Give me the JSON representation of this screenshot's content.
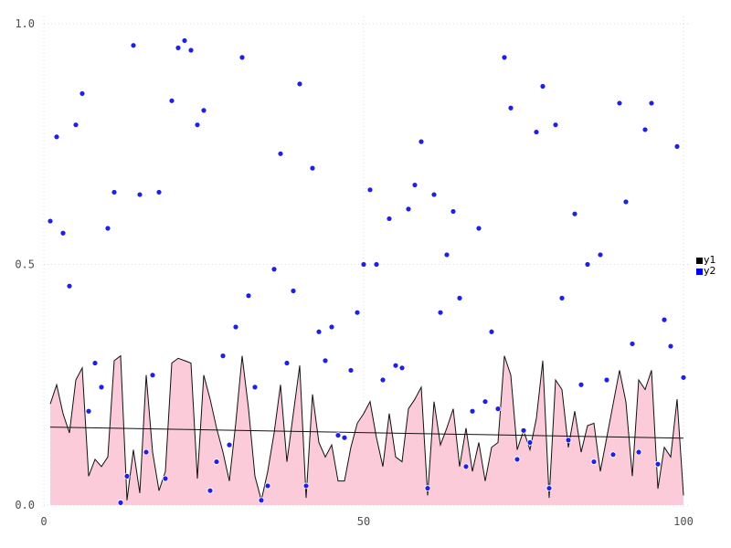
{
  "chart_data": {
    "type": "area+scatter",
    "title": "",
    "xlabel": "",
    "ylabel": "",
    "xlim": [
      0,
      100
    ],
    "ylim": [
      0,
      1
    ],
    "xticks": {
      "values": [
        0,
        50,
        100
      ],
      "labels": [
        "0",
        "50",
        "100"
      ]
    },
    "yticks": {
      "values": [
        0,
        0.5,
        1
      ],
      "labels": [
        "0.0",
        "0.5",
        "1.0"
      ]
    },
    "grid": {
      "visible": true,
      "style": "dotted",
      "color": "#d9d9e3"
    },
    "x_start": 1,
    "x_step": 1,
    "series": [
      {
        "name": "y1",
        "type": "area",
        "fill_color": "#fbcbd9",
        "line_color": "#111111",
        "values": [
          0.21,
          0.25,
          0.19,
          0.15,
          0.26,
          0.285,
          0.06,
          0.095,
          0.08,
          0.1,
          0.3,
          0.31,
          0.01,
          0.115,
          0.025,
          0.27,
          0.11,
          0.03,
          0.07,
          0.295,
          0.305,
          0.3,
          0.295,
          0.055,
          0.27,
          0.22,
          0.16,
          0.11,
          0.05,
          0.17,
          0.31,
          0.2,
          0.06,
          0.01,
          0.07,
          0.15,
          0.25,
          0.09,
          0.19,
          0.29,
          0.015,
          0.23,
          0.13,
          0.1,
          0.125,
          0.05,
          0.05,
          0.12,
          0.17,
          0.19,
          0.215,
          0.14,
          0.08,
          0.19,
          0.1,
          0.09,
          0.2,
          0.22,
          0.245,
          0.02,
          0.215,
          0.125,
          0.16,
          0.2,
          0.08,
          0.16,
          0.07,
          0.13,
          0.05,
          0.12,
          0.13,
          0.31,
          0.27,
          0.115,
          0.155,
          0.115,
          0.18,
          0.3,
          0.015,
          0.26,
          0.24,
          0.12,
          0.195,
          0.11,
          0.165,
          0.17,
          0.07,
          0.14,
          0.21,
          0.28,
          0.214,
          0.06,
          0.26,
          0.24,
          0.28,
          0.034,
          0.12,
          0.1,
          0.22,
          0.02
        ]
      },
      {
        "name": "y2",
        "type": "scatter",
        "point_color": "#1f1fe8",
        "point_edge_color": "#ffffff",
        "point_radius": 3,
        "values": [
          0.59,
          0.765,
          0.565,
          0.455,
          0.79,
          0.855,
          0.195,
          0.295,
          0.245,
          0.575,
          0.65,
          0.005,
          0.06,
          0.955,
          0.645,
          0.11,
          0.27,
          0.65,
          0.055,
          0.84,
          0.95,
          0.965,
          0.945,
          0.79,
          0.82,
          0.03,
          0.09,
          0.31,
          0.125,
          0.37,
          0.93,
          0.435,
          0.245,
          0.01,
          0.04,
          0.49,
          0.73,
          0.295,
          0.445,
          0.875,
          0.04,
          0.7,
          0.36,
          0.3,
          0.37,
          0.145,
          0.14,
          0.28,
          0.4,
          0.5,
          0.655,
          0.5,
          0.26,
          0.595,
          0.29,
          0.285,
          0.615,
          0.665,
          0.755,
          0.035,
          0.645,
          0.4,
          0.52,
          0.61,
          0.43,
          0.08,
          0.195,
          0.575,
          0.215,
          0.36,
          0.2,
          0.93,
          0.825,
          0.095,
          0.155,
          0.13,
          0.775,
          0.87,
          0.035,
          0.79,
          0.43,
          0.135,
          0.605,
          0.25,
          0.5,
          0.09,
          0.52,
          0.26,
          0.105,
          0.835,
          0.63,
          0.335,
          0.11,
          0.78,
          0.835,
          0.085,
          0.385,
          0.33,
          0.745,
          0.265
        ]
      }
    ],
    "trend_line": {
      "series": "y1",
      "from": {
        "x": 1,
        "y": 0.162
      },
      "to": {
        "x": 100,
        "y": 0.139
      },
      "color": "#111111"
    },
    "legend": {
      "position": "right",
      "items": [
        {
          "label": "y1",
          "color": "#000000"
        },
        {
          "label": "y2",
          "color": "#0000ee"
        }
      ]
    }
  },
  "page": {
    "background": "#ffffff"
  }
}
